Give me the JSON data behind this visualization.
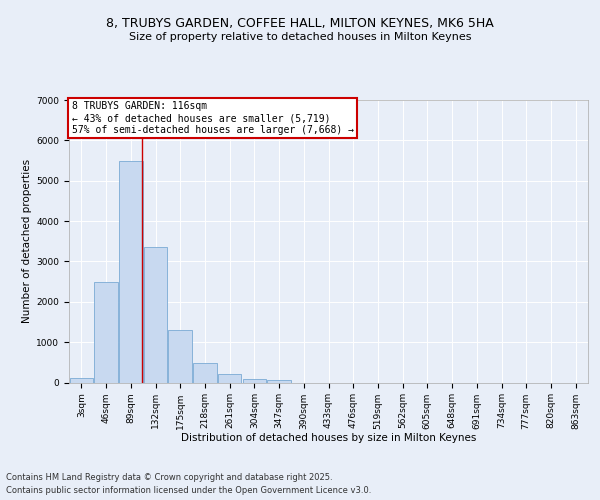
{
  "title_line1": "8, TRUBYS GARDEN, COFFEE HALL, MILTON KEYNES, MK6 5HA",
  "title_line2": "Size of property relative to detached houses in Milton Keynes",
  "xlabel": "Distribution of detached houses by size in Milton Keynes",
  "ylabel": "Number of detached properties",
  "categories": [
    "3sqm",
    "46sqm",
    "89sqm",
    "132sqm",
    "175sqm",
    "218sqm",
    "261sqm",
    "304sqm",
    "347sqm",
    "390sqm",
    "433sqm",
    "476sqm",
    "519sqm",
    "562sqm",
    "605sqm",
    "648sqm",
    "691sqm",
    "734sqm",
    "777sqm",
    "820sqm",
    "863sqm"
  ],
  "values": [
    100,
    2500,
    5500,
    3350,
    1300,
    480,
    210,
    90,
    50,
    0,
    0,
    0,
    0,
    0,
    0,
    0,
    0,
    0,
    0,
    0,
    0
  ],
  "bar_color": "#c8d9f0",
  "bar_edge_color": "#7aaad4",
  "vline_color": "#cc0000",
  "vline_x": 2.47,
  "annotation_title": "8 TRUBYS GARDEN: 116sqm",
  "annotation_line1": "← 43% of detached houses are smaller (5,719)",
  "annotation_line2": "57% of semi-detached houses are larger (7,668) →",
  "annotation_box_color": "#cc0000",
  "ylim": [
    0,
    7000
  ],
  "yticks": [
    0,
    1000,
    2000,
    3000,
    4000,
    5000,
    6000,
    7000
  ],
  "footer_line1": "Contains HM Land Registry data © Crown copyright and database right 2025.",
  "footer_line2": "Contains public sector information licensed under the Open Government Licence v3.0.",
  "bg_color": "#e8eef8",
  "plot_bg_color": "#e8eef8",
  "grid_color": "#ffffff",
  "title_fontsize": 9,
  "subtitle_fontsize": 8,
  "axis_label_fontsize": 7.5,
  "tick_fontsize": 6.5,
  "footer_fontsize": 6,
  "annotation_fontsize": 7
}
